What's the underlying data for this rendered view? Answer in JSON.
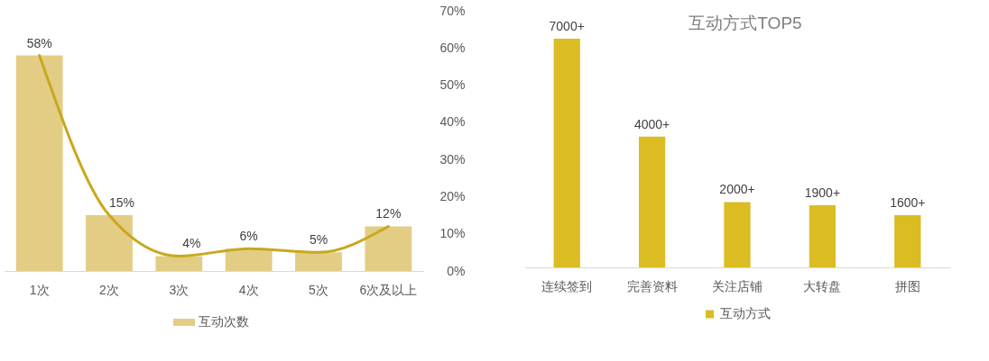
{
  "chart_data": [
    {
      "type": "bar",
      "categories": [
        "1次",
        "2次",
        "3次",
        "4次",
        "5次",
        "6次及以上"
      ],
      "series": [
        {
          "name": "互动次数",
          "type": "bar",
          "color": "#e3cd85",
          "axis": "y2",
          "values": [
            58,
            15,
            4,
            6,
            5,
            12
          ]
        },
        {
          "type": "line",
          "color": "#c8a81e",
          "axis": "y2",
          "values": [
            58,
            15,
            4,
            6,
            5,
            12
          ],
          "value_labels": [
            "58%",
            "15%",
            "4%",
            "6%",
            "5%",
            "12%"
          ]
        }
      ],
      "y2lim": [
        0,
        70
      ],
      "y2ticks": [
        {
          "value": 0,
          "label": "0%"
        },
        {
          "value": 10,
          "label": "10%"
        },
        {
          "value": 20,
          "label": "20%"
        },
        {
          "value": 30,
          "label": "30%"
        },
        {
          "value": 40,
          "label": "40%"
        },
        {
          "value": 50,
          "label": "50%"
        },
        {
          "value": 60,
          "label": "60%"
        },
        {
          "value": 70,
          "label": "70%"
        }
      ],
      "grid": false,
      "legend": "bottom"
    },
    {
      "type": "bar",
      "title": "互动方式TOP5",
      "categories": [
        "连续签到",
        "完善资料",
        "关注店铺",
        "大转盘",
        "拼图"
      ],
      "series": [
        {
          "name": "互动方式",
          "color": "#dbbc22",
          "values": [
            7000,
            4000,
            2000,
            1900,
            1600
          ],
          "value_labels": [
            "7000+",
            "4000+",
            "2000+",
            "1900+",
            "1600+"
          ]
        }
      ],
      "grid": false,
      "legend": "bottom"
    }
  ]
}
